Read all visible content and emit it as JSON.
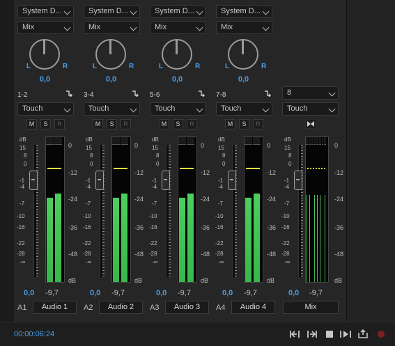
{
  "tracks": [
    {
      "input": "System D...",
      "mode": "Mix",
      "pan_l": "L",
      "pan_r": "R",
      "pan_value": "0,0",
      "channel": "1-2",
      "automation": "Touch",
      "mute": "M",
      "solo": "S",
      "record": "R",
      "db_label": "dB",
      "left_scale": [
        "15",
        "8",
        "0",
        "-1",
        "-4",
        "-7",
        "-10",
        "-16",
        "-22",
        "-28",
        "-∞"
      ],
      "right_scale": [
        "0",
        "-12",
        "-24",
        "-36",
        "-48",
        "dB"
      ],
      "volume_value": "0,0",
      "peak_value": "-9,7",
      "track_id": "A1",
      "track_name": "Audio 1",
      "meter_level": 0.58
    },
    {
      "input": "System D...",
      "mode": "Mix",
      "pan_l": "L",
      "pan_r": "R",
      "pan_value": "0,0",
      "channel": "3-4",
      "automation": "Touch",
      "mute": "M",
      "solo": "S",
      "record": "R",
      "db_label": "dB",
      "left_scale": [
        "15",
        "8",
        "0",
        "-1",
        "-4",
        "-7",
        "-10",
        "-16",
        "-22",
        "-28",
        "-∞"
      ],
      "right_scale": [
        "0",
        "-12",
        "-24",
        "-36",
        "-48",
        "dB"
      ],
      "volume_value": "0,0",
      "peak_value": "-9,7",
      "track_id": "A2",
      "track_name": "Audio 2",
      "meter_level": 0.58
    },
    {
      "input": "System D...",
      "mode": "Mix",
      "pan_l": "L",
      "pan_r": "R",
      "pan_value": "0,0",
      "channel": "5-6",
      "automation": "Touch",
      "mute": "M",
      "solo": "S",
      "record": "R",
      "db_label": "dB",
      "left_scale": [
        "15",
        "8",
        "0",
        "-1",
        "-4",
        "-7",
        "-10",
        "-16",
        "-22",
        "-28",
        "-∞"
      ],
      "right_scale": [
        "0",
        "-12",
        "-24",
        "-36",
        "-48",
        "dB"
      ],
      "volume_value": "0,0",
      "peak_value": "-9,7",
      "track_id": "A3",
      "track_name": "Audio 3",
      "meter_level": 0.58
    },
    {
      "input": "System D...",
      "mode": "Mix",
      "pan_l": "L",
      "pan_r": "R",
      "pan_value": "0,0",
      "channel": "7-8",
      "automation": "Touch",
      "mute": "M",
      "solo": "S",
      "record": "R",
      "db_label": "dB",
      "left_scale": [
        "15",
        "8",
        "0",
        "-1",
        "-4",
        "-7",
        "-10",
        "-16",
        "-22",
        "-28",
        "-∞"
      ],
      "right_scale": [
        "0",
        "-12",
        "-24",
        "-36",
        "-48",
        "dB"
      ],
      "volume_value": "0,0",
      "peak_value": "-9,7",
      "track_id": "A4",
      "track_name": "Audio 4",
      "meter_level": 0.58
    }
  ],
  "mix": {
    "channels": "8",
    "automation": "Touch",
    "db_label": "dB",
    "left_scale": [
      "15",
      "8",
      "0",
      "-1",
      "-4",
      "-7",
      "-10",
      "-16",
      "-22",
      "-28",
      "-∞"
    ],
    "right_scale": [
      "0",
      "-12",
      "-24",
      "-36",
      "-48",
      "dB"
    ],
    "volume_value": "0,0",
    "peak_value": "-9,7",
    "track_name": "Mix",
    "meter_level": 0.6
  },
  "footer": {
    "timecode": "00:00:06:24"
  },
  "colors": {
    "accent": "#4a9ee8",
    "meter_green": "#4ccf5c",
    "peak_yellow": "#f0e33b",
    "record_red": "#c0392b"
  }
}
